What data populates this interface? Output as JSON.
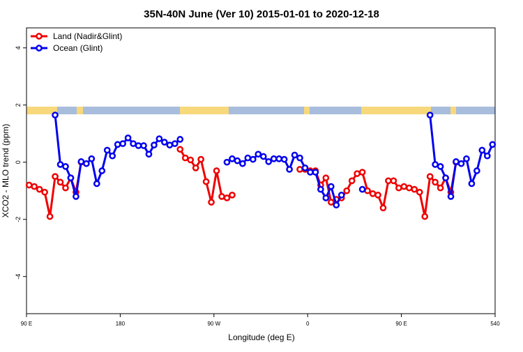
{
  "chart_data": {
    "type": "line",
    "title": "35N-40N June (Ver 10)   2015-01-01 to 2020-12-18",
    "x_label": "Longitude (deg E)",
    "y_label": "XCO2 - MLO trend (ppm)",
    "legend": "top-left",
    "grid": false,
    "xlim": [
      90,
      540
    ],
    "ylim": [
      -5.3,
      4.7
    ],
    "xticks": [
      {
        "value": 90,
        "label": "90 E"
      },
      180,
      {
        "value": 270,
        "label": "90 W"
      },
      {
        "value": 360,
        "label": "0"
      },
      {
        "value": 450,
        "label": "90 E"
      },
      540
    ],
    "yticks": [
      -4,
      -2,
      0,
      2,
      4
    ],
    "x": [
      92.5,
      97.5,
      102.5,
      107.5,
      112.5,
      117.5,
      122.5,
      127.5,
      132.5,
      137.5,
      142.5,
      147.5,
      152.5,
      157.5,
      162.5,
      167.5,
      172.5,
      177.5,
      182.5,
      187.5,
      192.5,
      197.5,
      202.5,
      207.5,
      212.5,
      217.5,
      222.5,
      227.5,
      232.5,
      237.5,
      242.5,
      247.5,
      252.5,
      257.5,
      262.5,
      267.5,
      272.5,
      277.5,
      282.5,
      287.5,
      292.5,
      297.5,
      302.5,
      307.5,
      312.5,
      317.5,
      322.5,
      327.5,
      332.5,
      337.5,
      342.5,
      347.5,
      352.5,
      357.5,
      362.5,
      367.5,
      372.5,
      377.5,
      382.5,
      387.5,
      392.5,
      397.5,
      402.5,
      407.5,
      412.5,
      417.5,
      422.5,
      427.5,
      432.5,
      437.5,
      442.5,
      447.5,
      452.5,
      457.5,
      462.5,
      467.5,
      472.5,
      477.5,
      482.5,
      487.5,
      492.5,
      497.5,
      502.5,
      507.5,
      512.5,
      517.5,
      522.5,
      527.5,
      532.5,
      537.5
    ],
    "series": [
      {
        "name": "Land (Nadir&Glint)",
        "color": "#ee0000",
        "values": [
          -0.8,
          -0.85,
          -0.95,
          -1.05,
          -1.9,
          -0.5,
          -0.7,
          -0.9,
          -0.55,
          -1.05,
          0,
          null,
          null,
          null,
          null,
          null,
          null,
          null,
          null,
          null,
          null,
          null,
          null,
          null,
          null,
          null,
          null,
          null,
          null,
          0.45,
          0.15,
          0.08,
          -0.2,
          0.1,
          -0.68,
          -1.4,
          -0.3,
          -1.2,
          -1.25,
          -1.15,
          null,
          null,
          null,
          null,
          null,
          null,
          null,
          null,
          null,
          null,
          null,
          null,
          -0.25,
          -0.25,
          -0.3,
          -0.3,
          -0.8,
          -0.55,
          -1.4,
          -1.3,
          -1.25,
          -1.0,
          -0.65,
          -0.4,
          -0.35,
          -1.0,
          -1.1,
          -1.15,
          -1.6,
          -0.65,
          -0.65,
          -0.9,
          -0.85,
          -0.9,
          -0.95,
          -1.05,
          -1.9,
          -0.5,
          -0.7,
          -0.9,
          -0.55,
          -1.05,
          0,
          null,
          null,
          null,
          null,
          null,
          null,
          null
        ]
      },
      {
        "name": "Ocean (Glint)",
        "color": "#0000ee",
        "values": [
          null,
          null,
          null,
          null,
          null,
          1.65,
          -0.08,
          -0.15,
          -0.55,
          -1.2,
          0.02,
          -0.05,
          0.12,
          -0.75,
          -0.3,
          0.42,
          0.22,
          0.62,
          0.65,
          0.85,
          0.65,
          0.58,
          0.58,
          0.28,
          0.6,
          0.82,
          0.7,
          0.6,
          0.65,
          0.8,
          null,
          null,
          null,
          null,
          null,
          null,
          null,
          null,
          0,
          0.12,
          0.05,
          -0.05,
          0.15,
          0.1,
          0.28,
          0.2,
          0.02,
          0.12,
          0.12,
          0.1,
          -0.25,
          0.25,
          0.15,
          -0.2,
          -0.35,
          -0.35,
          -0.95,
          -1.25,
          -0.85,
          -1.5,
          -1.15,
          null,
          null,
          null,
          -0.95,
          null,
          null,
          null,
          null,
          null,
          null,
          null,
          null,
          null,
          null,
          null,
          null,
          1.65,
          -0.08,
          -0.15,
          -0.55,
          -1.2,
          0.02,
          -0.05,
          0.12,
          -0.75,
          -0.3,
          0.42,
          0.22,
          0.62
        ]
      }
    ]
  }
}
